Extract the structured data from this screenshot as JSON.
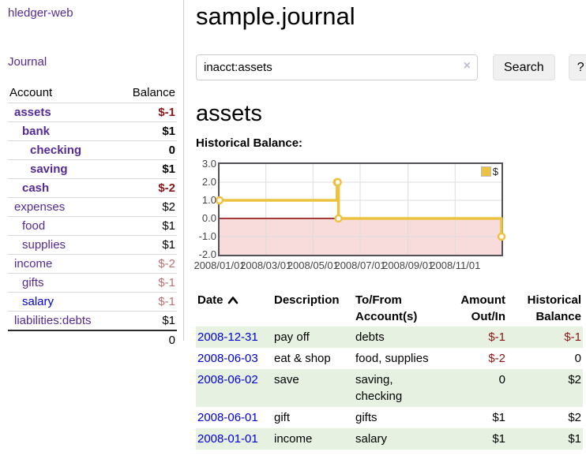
{
  "colors": {
    "purple_link": "#552a97",
    "blue_link": "#0000dd",
    "negative_strong": "#8b1515",
    "negative_muted": "#b97070",
    "row_highlight_green": "#e6f1e2",
    "chart_line": "#edc240",
    "chart_negative_fill": "#f8dcdc",
    "chart_zero_line": "#8b0000"
  },
  "sidebar": {
    "app_title": "hledger-web",
    "journal_link": "Journal",
    "accounts": {
      "col_account": "Account",
      "col_balance": "Balance",
      "rows": [
        {
          "account": "assets",
          "indent": 0,
          "bold": true,
          "balance": "$-1",
          "tone": "neg"
        },
        {
          "account": "bank",
          "indent": 1,
          "bold": true,
          "balance": "$1",
          "tone": "pos"
        },
        {
          "account": "checking",
          "indent": 2,
          "bold": true,
          "balance": "0",
          "tone": "pos"
        },
        {
          "account": "saving",
          "indent": 2,
          "bold": true,
          "balance": "$1",
          "tone": "pos"
        },
        {
          "account": "cash",
          "indent": 1,
          "bold": true,
          "balance": "$-2",
          "tone": "neg"
        },
        {
          "account": "expenses",
          "indent": 0,
          "bold": false,
          "balance": "$2",
          "tone": "pos"
        },
        {
          "account": "food",
          "indent": 1,
          "bold": false,
          "balance": "$1",
          "tone": "pos"
        },
        {
          "account": "supplies",
          "indent": 1,
          "bold": false,
          "balance": "$1",
          "tone": "pos"
        },
        {
          "account": "income",
          "indent": 0,
          "bold": false,
          "balance": "$-2",
          "tone": "neg-muted"
        },
        {
          "account": "gifts",
          "indent": 1,
          "bold": false,
          "balance": "$-1",
          "tone": "neg-muted"
        },
        {
          "account": "salary",
          "indent": 1,
          "bold": false,
          "balance": "$-1",
          "tone": "neg-muted",
          "unvisited": true
        },
        {
          "account": "liabilities:debts",
          "indent": 0,
          "bold": false,
          "balance": "$1",
          "tone": "pos"
        }
      ],
      "total": "0"
    }
  },
  "main": {
    "title": "sample.journal",
    "search": {
      "query": "inacct:assets",
      "clear_icon": "×",
      "button_label": "Search",
      "help_label": "?"
    },
    "account_heading": "assets",
    "chart_title": "Historical Balance:",
    "chart_data": {
      "type": "line",
      "step": true,
      "legend": "$",
      "x_range": [
        "2008-01-01",
        "2008-12-31"
      ],
      "ylim": [
        -2,
        3
      ],
      "y_ticks": [
        "3.0",
        "2.0",
        "1.0",
        "0.0",
        "-1.0",
        "-2.0"
      ],
      "x_ticks": [
        "2008/01/01",
        "2008/03/01",
        "2008/05/01",
        "2008/07/01",
        "2008/09/01",
        "2008/11/01"
      ],
      "series": [
        {
          "name": "$",
          "points": [
            [
              "2008-01-01",
              1
            ],
            [
              "2008-06-01",
              2
            ],
            [
              "2008-06-02",
              2
            ],
            [
              "2008-06-03",
              0
            ],
            [
              "2008-12-31",
              -1
            ]
          ]
        }
      ]
    },
    "register": {
      "columns": [
        "Date",
        "Description",
        "To/From Account(s)",
        "Amount Out/In",
        "Historical Balance"
      ],
      "sort_column": "Date",
      "sort_direction": "ascending",
      "rows": [
        {
          "date": "2008-12-31",
          "description": "pay off",
          "accounts": "debts",
          "amount": "$-1",
          "amount_negative": true,
          "balance": "$-1",
          "balance_negative": true
        },
        {
          "date": "2008-06-03",
          "description": "eat & shop",
          "accounts": "food, supplies",
          "amount": "$-2",
          "amount_negative": true,
          "balance": "0",
          "balance_negative": false
        },
        {
          "date": "2008-06-02",
          "description": "save",
          "accounts": "saving, checking",
          "amount": "0",
          "amount_negative": false,
          "balance": "$2",
          "balance_negative": false
        },
        {
          "date": "2008-06-01",
          "description": "gift",
          "accounts": "gifts",
          "amount": "$1",
          "amount_negative": false,
          "balance": "$2",
          "balance_negative": false
        },
        {
          "date": "2008-01-01",
          "description": "income",
          "accounts": "salary",
          "amount": "$1",
          "amount_negative": false,
          "balance": "$1",
          "balance_negative": false
        }
      ]
    }
  }
}
